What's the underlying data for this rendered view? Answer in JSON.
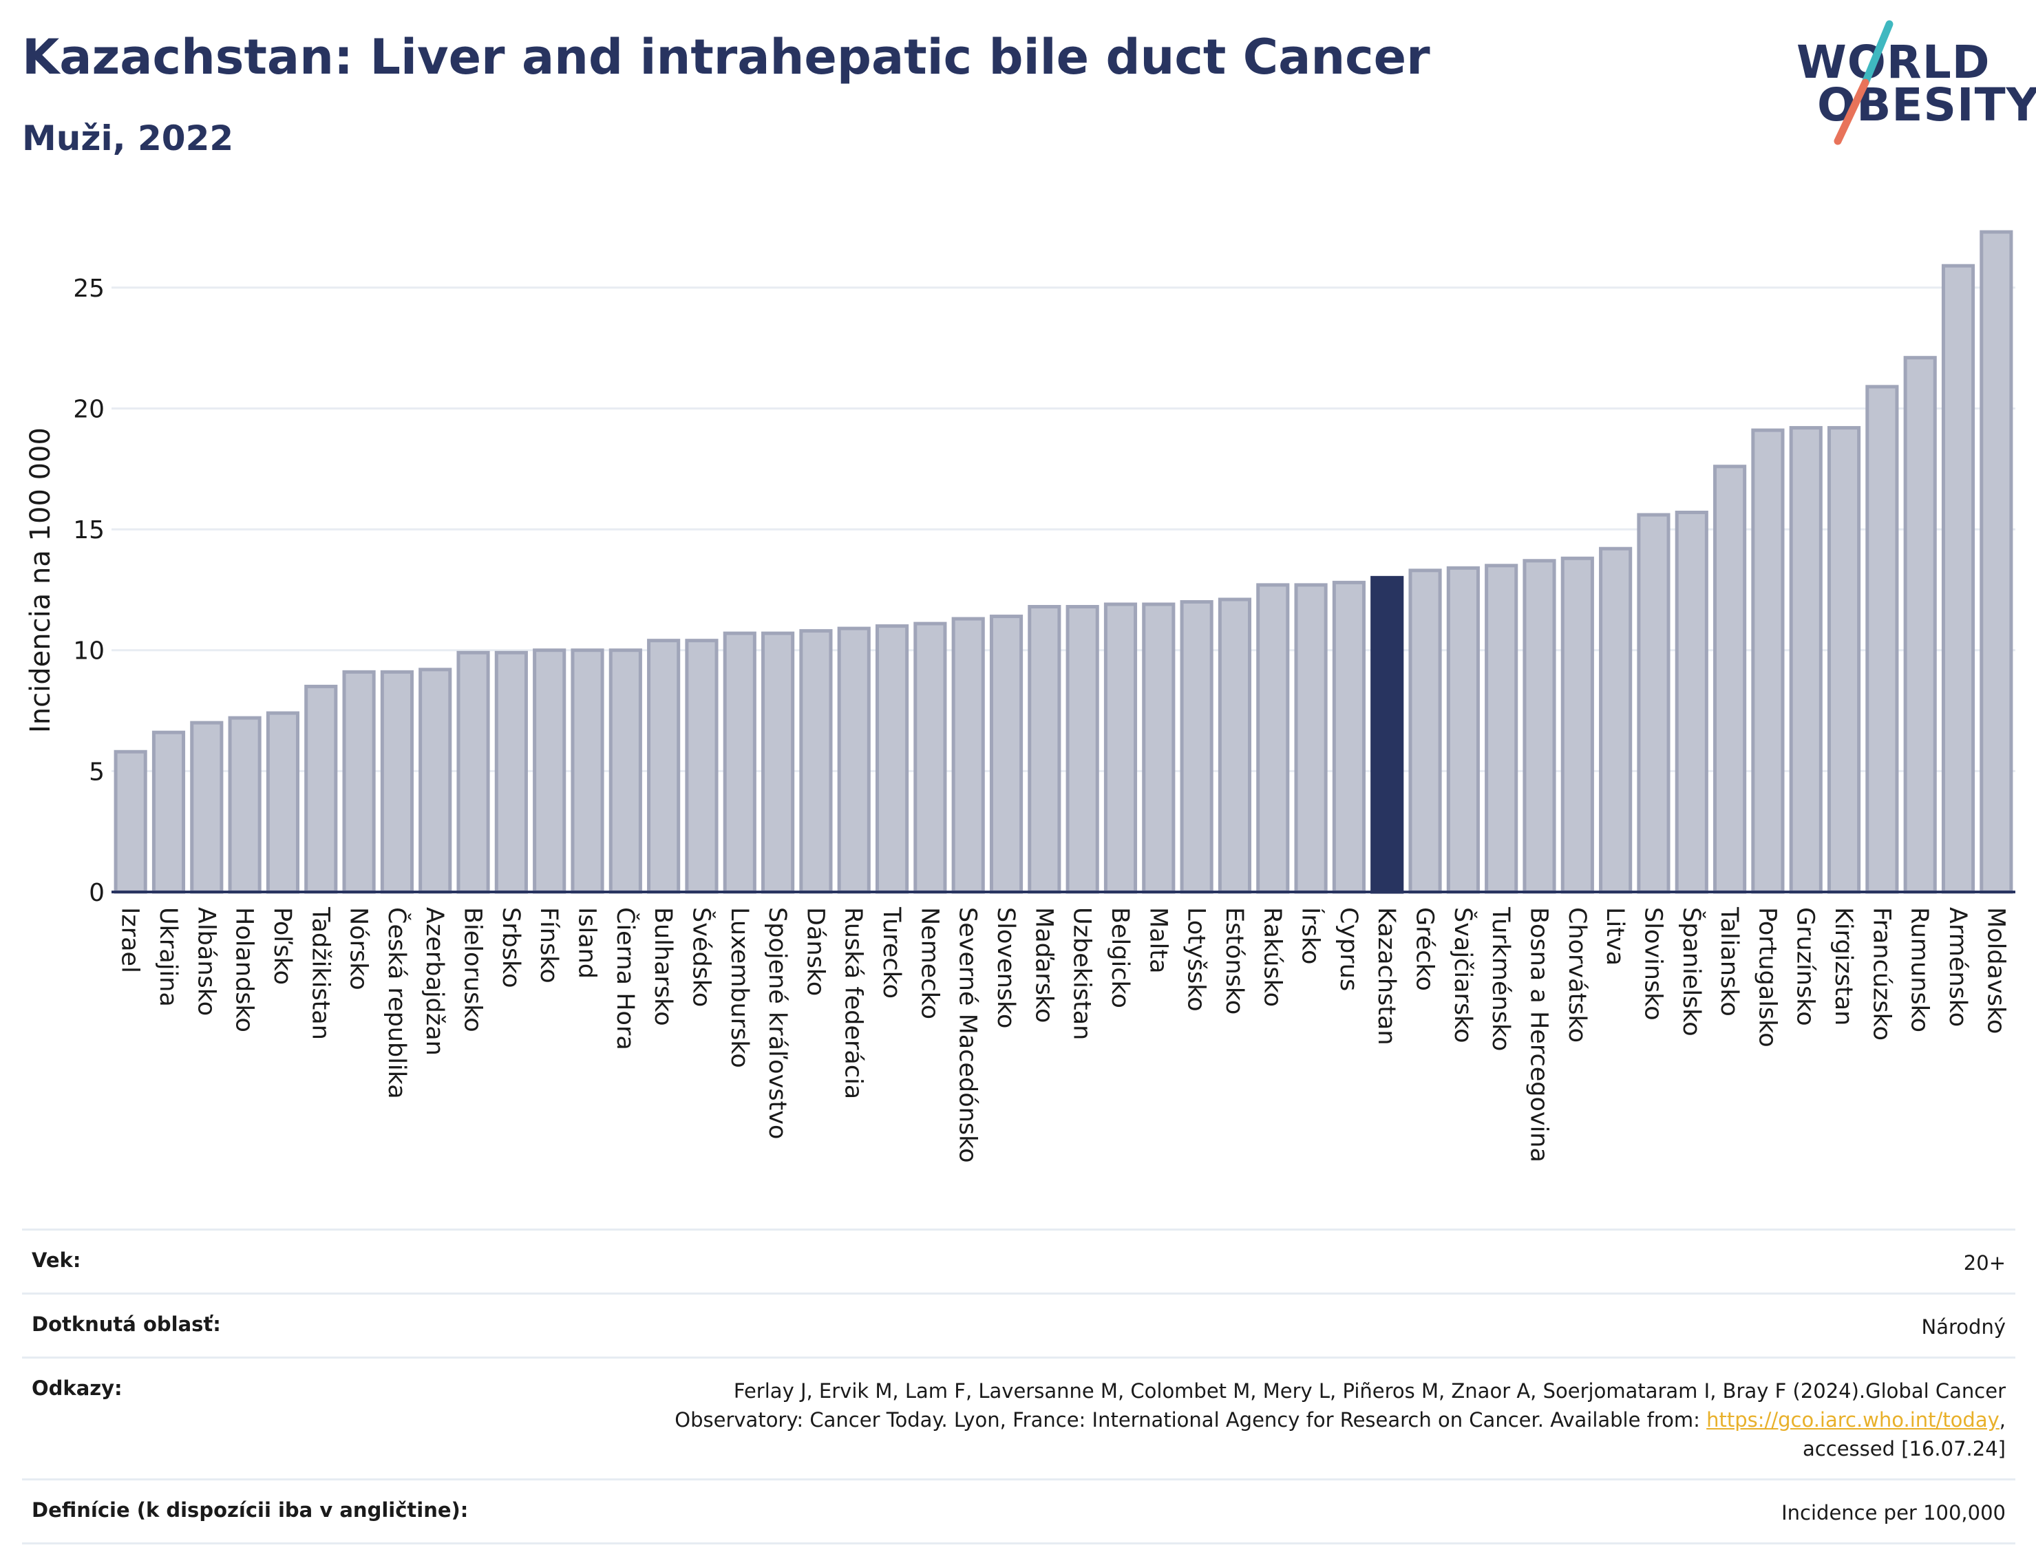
{
  "header": {
    "title": "Kazachstan: Liver and intrahepatic bile duct Cancer",
    "subtitle": "Muži, 2022"
  },
  "logo": {
    "line1": "WORLD",
    "line2": "OBESITY",
    "colors": {
      "text": "#283460",
      "slash_top": "#3fb8c0",
      "slash_bottom": "#e8735a"
    }
  },
  "chart_data": {
    "type": "bar",
    "ylabel": "Incidencia na 100 000",
    "xlabel": "",
    "ylim": [
      0,
      27.5
    ],
    "yticks": [
      0,
      5,
      10,
      15,
      20,
      25
    ],
    "grid": true,
    "highlight": "Kazachstan",
    "colors": {
      "bar": "#c0c4d1",
      "bar_edge": "#a0a5b9",
      "highlight": "#283460"
    },
    "categories": [
      "Izrael",
      "Ukrajina",
      "Albánsko",
      "Holandsko",
      "Poľsko",
      "Tadžikistan",
      "Nórsko",
      "Česká republika",
      "Azerbajdžan",
      "Bielorusko",
      "Srbsko",
      "Fínsko",
      "Island",
      "Čierna Hora",
      "Bulharsko",
      "Švédsko",
      "Luxembursko",
      "Spojené kráľovstvo",
      "Dánsko",
      "Ruská federácia",
      "Turecko",
      "Nemecko",
      "Severné Macedónsko",
      "Slovensko",
      "Maďarsko",
      "Uzbekistan",
      "Belgicko",
      "Malta",
      "Lotyšsko",
      "Estónsko",
      "Rakúsko",
      "Írsko",
      "Cyprus",
      "Kazachstan",
      "Grécko",
      "Švajčiarsko",
      "Turkménsko",
      "Bosna a Hercegovina",
      "Chorvátsko",
      "Litva",
      "Slovinsko",
      "Španielsko",
      "Taliansko",
      "Portugalsko",
      "Gruzínsko",
      "Kirgizstan",
      "Francúzsko",
      "Rumunsko",
      "Arménsko",
      "Moldavsko"
    ],
    "values": [
      5.8,
      6.6,
      7.0,
      7.2,
      7.4,
      8.5,
      9.1,
      9.1,
      9.2,
      9.9,
      9.9,
      10.0,
      10.0,
      10.0,
      10.4,
      10.4,
      10.7,
      10.7,
      10.8,
      10.9,
      11.0,
      11.1,
      11.3,
      11.4,
      11.8,
      11.8,
      11.9,
      11.9,
      12.0,
      12.1,
      12.7,
      12.7,
      12.8,
      13.0,
      13.3,
      13.4,
      13.5,
      13.7,
      13.8,
      14.2,
      15.6,
      15.7,
      17.6,
      19.1,
      19.2,
      19.2,
      20.9,
      22.1,
      25.9,
      27.3
    ]
  },
  "meta": {
    "age_label": "Vek:",
    "age_value": "20+",
    "area_label": "Dotknutá oblasť:",
    "area_value": "Národný",
    "refs_label": "Odkazy:",
    "refs_line1": "Ferlay J, Ervik M, Lam F, Laversanne M, Colombet M, Mery L, Piñeros M, Znaor A, Soerjomataram I, Bray F (2024).Global Cancer",
    "refs_line2a": "Observatory: Cancer Today. Lyon, France: International Agency for Research on Cancer. Available from: ",
    "refs_link": "https://gco.iarc.who.int/today",
    "refs_line2b": ",",
    "refs_line3": "accessed [16.07.24]",
    "def_label": "Definície (k dispozícii iba v angličtine):",
    "def_value": "Incidence per 100,000"
  }
}
